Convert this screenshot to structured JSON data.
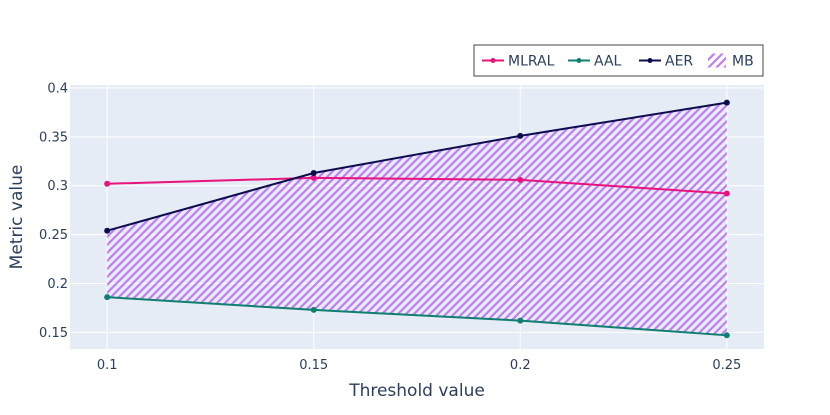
{
  "chart_data": {
    "type": "line",
    "xlabel": "Threshold value",
    "ylabel": "Metric value",
    "x": [
      0.1,
      0.15,
      0.2,
      0.25
    ],
    "x_tick_labels": [
      "0.1",
      "0.15",
      "0.2",
      "0.25"
    ],
    "y_ticks": [
      0.15,
      0.2,
      0.25,
      0.3,
      0.35,
      0.4
    ],
    "y_tick_labels": [
      "0.15",
      "0.2",
      "0.25",
      "0.3",
      "0.35",
      "0.4"
    ],
    "xlim": [
      0.091,
      0.259
    ],
    "ylim": [
      0.133,
      0.403
    ],
    "grid": true,
    "legend_position": "top-right",
    "series": [
      {
        "name": "MLRAL",
        "values": [
          0.302,
          0.308,
          0.306,
          0.292
        ],
        "color": "#e8137c",
        "mode": "lines+markers"
      },
      {
        "name": "AAL",
        "values": [
          0.186,
          0.173,
          0.162,
          0.147
        ],
        "color": "#0f7f70",
        "mode": "lines+markers"
      },
      {
        "name": "AER",
        "values": [
          0.254,
          0.313,
          0.351,
          0.385
        ],
        "color": "#0c0c4e",
        "mode": "lines+markers"
      }
    ],
    "band": {
      "name": "MB",
      "lower_series": "AAL",
      "upper_series": "AER",
      "fill_color": "#c27cf2",
      "pattern": "diagonal-hatch"
    },
    "plot_background": "#e5ecf6"
  }
}
